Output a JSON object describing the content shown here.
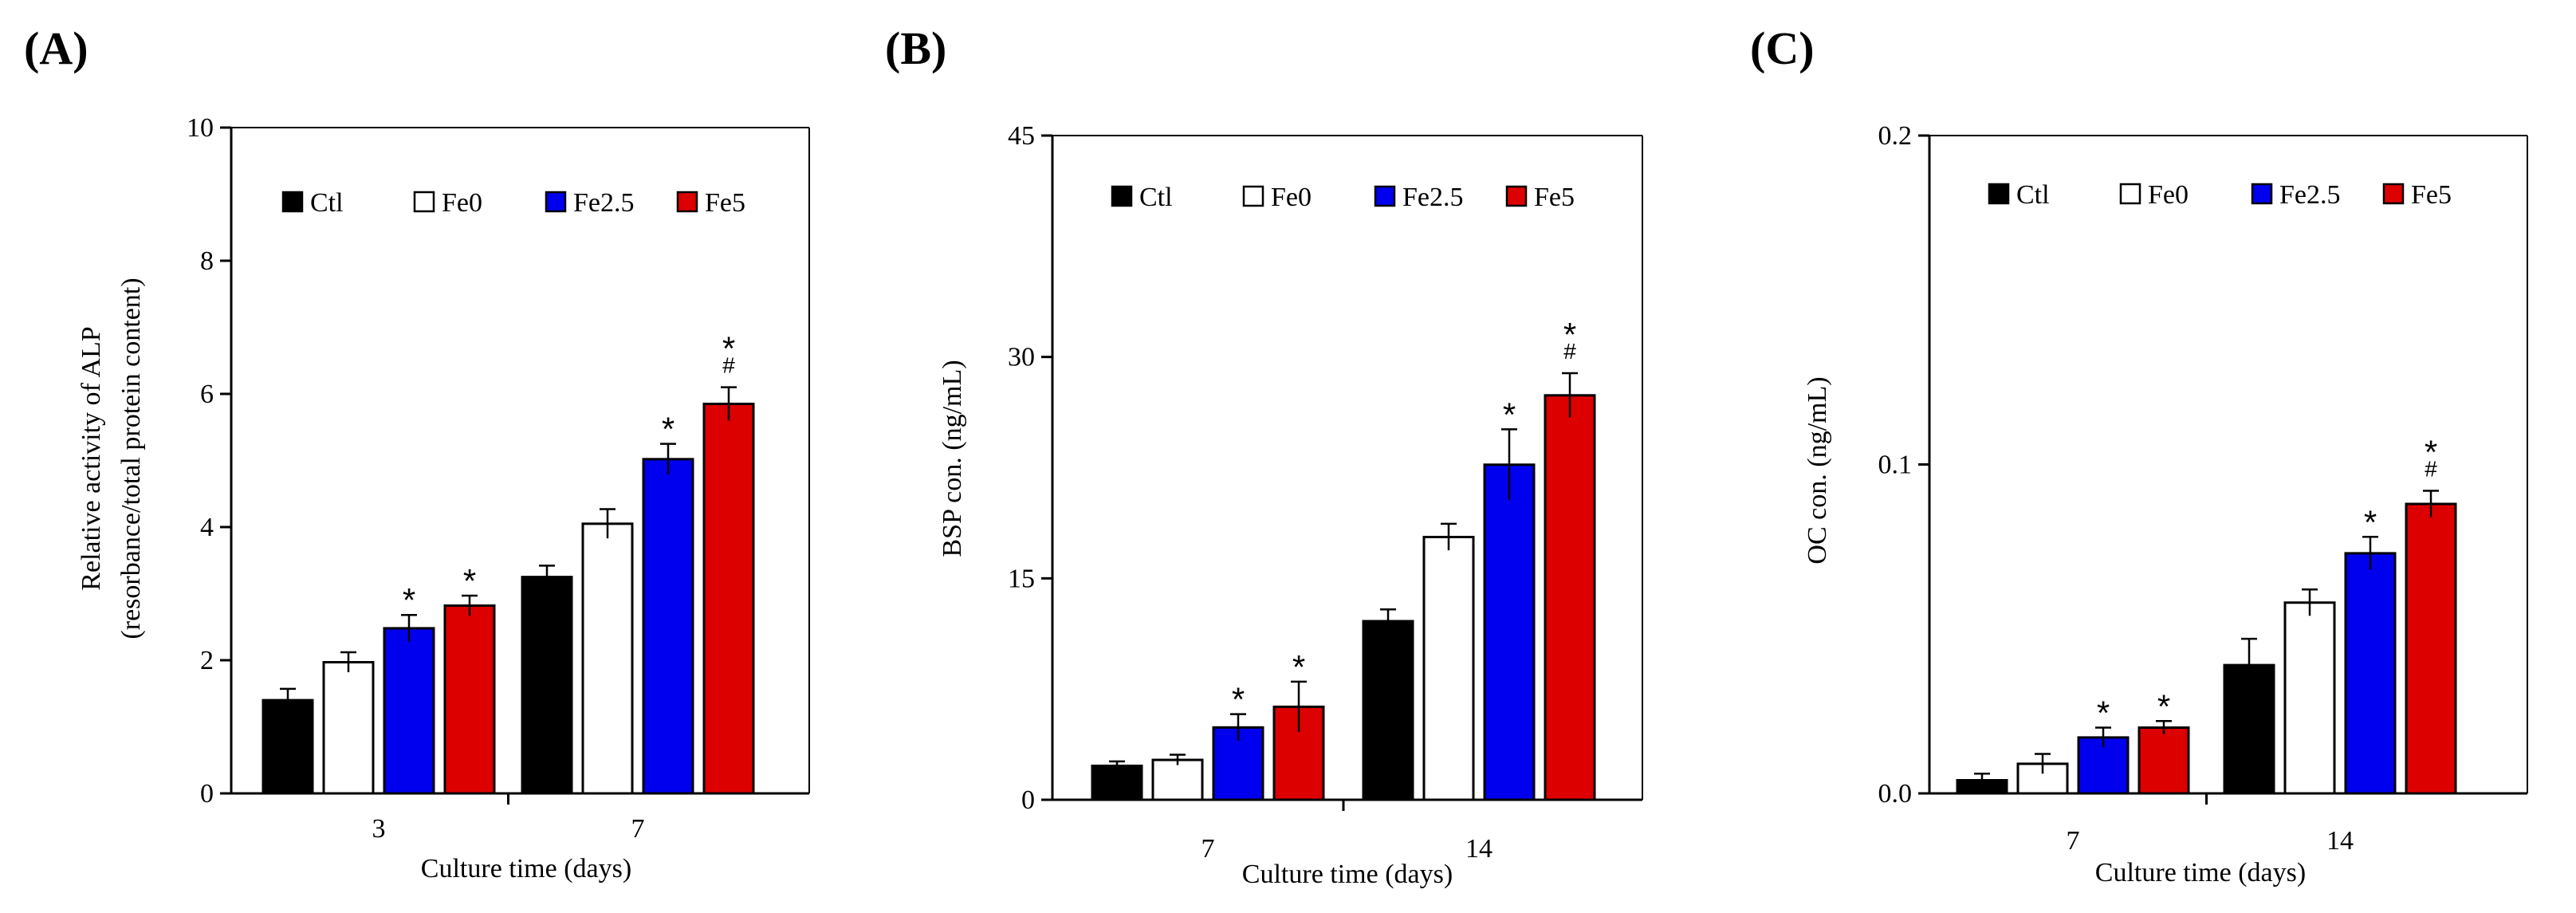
{
  "chart_data": [
    {
      "panel": "(A)",
      "type": "bar",
      "categories": [
        "3",
        "7"
      ],
      "xlabel": "Culture time (days)",
      "ylabel": "Relative activity of ALP",
      "ylabel2": "(resorbance/total protein content)",
      "ylim": [
        0,
        10
      ],
      "yticks": [
        "0",
        "2",
        "4",
        "6",
        "8",
        "10"
      ],
      "legend_position": "top",
      "series": [
        {
          "name": "Ctl",
          "color": "#000000",
          "values": [
            1.4,
            3.25
          ],
          "errors": [
            0.17,
            0.17
          ],
          "sig": [
            "",
            ""
          ]
        },
        {
          "name": "Fe0",
          "color": "#ffffff",
          "values": [
            1.97,
            4.05
          ],
          "errors": [
            0.15,
            0.22
          ],
          "sig": [
            "",
            ""
          ]
        },
        {
          "name": "Fe2.5",
          "color": "#0000ee",
          "values": [
            2.48,
            5.02
          ],
          "errors": [
            0.2,
            0.23
          ],
          "sig": [
            "*",
            "*"
          ]
        },
        {
          "name": "Fe5",
          "color": "#dd0000",
          "values": [
            2.82,
            5.85
          ],
          "errors": [
            0.15,
            0.25
          ],
          "sig": [
            "*",
            "*#"
          ]
        }
      ]
    },
    {
      "panel": "(B)",
      "type": "bar",
      "categories": [
        "7",
        "14"
      ],
      "xlabel": "Culture time (days)",
      "ylabel": "BSP con. (ng/mL)",
      "ylim": [
        0,
        45
      ],
      "yticks": [
        "0",
        "15",
        "30",
        "45"
      ],
      "legend_position": "top",
      "series": [
        {
          "name": "Ctl",
          "color": "#000000",
          "values": [
            2.3,
            12.1
          ],
          "errors": [
            0.3,
            0.8
          ],
          "sig": [
            "",
            ""
          ]
        },
        {
          "name": "Fe0",
          "color": "#ffffff",
          "values": [
            2.7,
            17.8
          ],
          "errors": [
            0.35,
            0.9
          ],
          "sig": [
            "",
            ""
          ]
        },
        {
          "name": "Fe2.5",
          "color": "#0000ee",
          "values": [
            4.9,
            22.7
          ],
          "errors": [
            0.9,
            2.4
          ],
          "sig": [
            "*",
            "*"
          ]
        },
        {
          "name": "Fe5",
          "color": "#dd0000",
          "values": [
            6.3,
            27.4
          ],
          "errors": [
            1.7,
            1.5
          ],
          "sig": [
            "*",
            "*#"
          ]
        }
      ]
    },
    {
      "panel": "(C)",
      "type": "bar",
      "categories": [
        "7",
        "14"
      ],
      "xlabel": "Culture time (days)",
      "ylabel": "OC con. (ng/mL)",
      "ylim": [
        0,
        0.2
      ],
      "yticks": [
        "0.0",
        "0.1",
        "0.2"
      ],
      "legend_position": "top",
      "series": [
        {
          "name": "Ctl",
          "color": "#000000",
          "values": [
            0.004,
            0.039
          ],
          "errors": [
            0.002,
            0.008
          ],
          "sig": [
            "",
            ""
          ]
        },
        {
          "name": "Fe0",
          "color": "#ffffff",
          "values": [
            0.009,
            0.058
          ],
          "errors": [
            0.003,
            0.004
          ],
          "sig": [
            "",
            ""
          ]
        },
        {
          "name": "Fe2.5",
          "color": "#0000ee",
          "values": [
            0.017,
            0.073
          ],
          "errors": [
            0.003,
            0.005
          ],
          "sig": [
            "*",
            "*"
          ]
        },
        {
          "name": "Fe5",
          "color": "#dd0000",
          "values": [
            0.02,
            0.088
          ],
          "errors": [
            0.002,
            0.004
          ],
          "sig": [
            "*",
            "*#"
          ]
        }
      ]
    }
  ]
}
